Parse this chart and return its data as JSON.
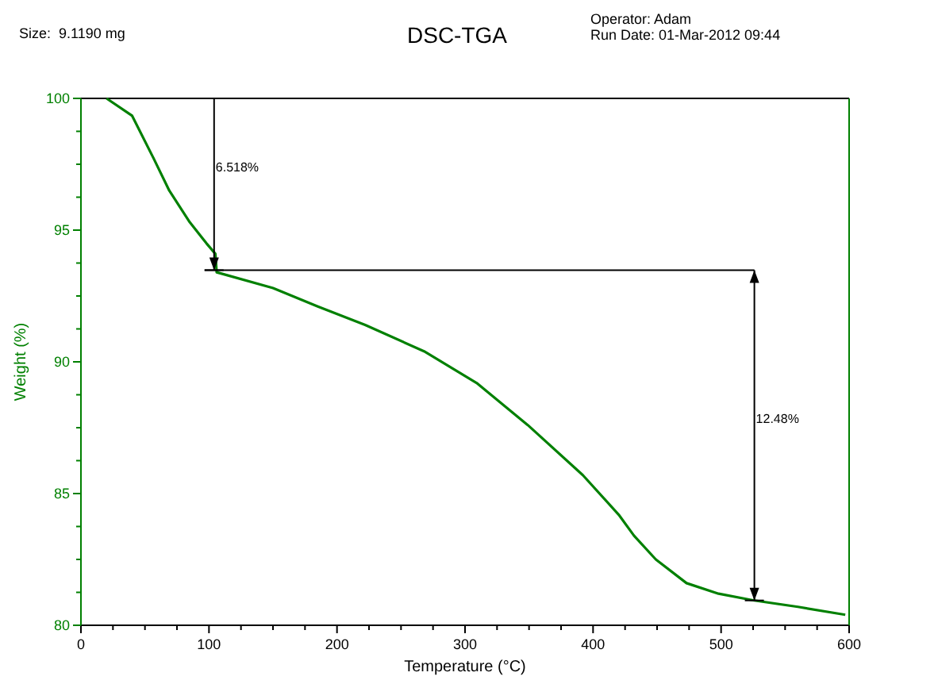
{
  "chart_data": {
    "type": "line",
    "title": "DSC-TGA",
    "xlabel": "Temperature (°C)",
    "ylabel": "Weight (%)",
    "x": [
      20,
      40,
      57,
      69,
      85,
      98,
      105,
      106,
      150,
      185,
      222,
      268,
      309,
      349,
      392,
      420,
      432,
      449,
      473,
      498,
      525,
      560,
      597
    ],
    "series": [
      {
        "color": "#008000",
        "values": [
          100,
          99.34,
          97.7,
          96.5,
          95.3,
          94.5,
          94.1,
          93.4,
          92.8,
          92.1,
          91.4,
          90.4,
          89.2,
          87.6,
          85.7,
          84.2,
          83.4,
          82.5,
          81.6,
          81.2,
          80.95,
          80.7,
          80.4
        ]
      }
    ],
    "xlim": [
      0,
      600
    ],
    "ylim": [
      80,
      100
    ],
    "xticks": [
      0,
      {
        "value": 25,
        "label": null
      },
      {
        "value": 50,
        "label": null
      },
      {
        "value": 75,
        "label": null
      },
      100,
      {
        "value": 125,
        "label": null
      },
      {
        "value": 150,
        "label": null
      },
      {
        "value": 175,
        "label": null
      },
      200,
      {
        "value": 225,
        "label": null
      },
      {
        "value": 250,
        "label": null
      },
      {
        "value": 275,
        "label": null
      },
      300,
      {
        "value": 325,
        "label": null
      },
      {
        "value": 350,
        "label": null
      },
      {
        "value": 375,
        "label": null
      },
      400,
      {
        "value": 425,
        "label": null
      },
      {
        "value": 450,
        "label": null
      },
      {
        "value": 475,
        "label": null
      },
      500,
      {
        "value": 525,
        "label": null
      },
      {
        "value": 550,
        "label": null
      },
      {
        "value": 575,
        "label": null
      },
      600
    ],
    "yticks": [
      80,
      {
        "value": 81.25,
        "label": null
      },
      {
        "value": 82.5,
        "label": null
      },
      {
        "value": 83.75,
        "label": null
      },
      85,
      {
        "value": 86.25,
        "label": null
      },
      {
        "value": 87.5,
        "label": null
      },
      {
        "value": 88.75,
        "label": null
      },
      90,
      {
        "value": 91.25,
        "label": null
      },
      {
        "value": 92.5,
        "label": null
      },
      {
        "value": 93.75,
        "label": null
      },
      95,
      {
        "value": 96.25,
        "label": null
      },
      {
        "value": 97.5,
        "label": null
      },
      {
        "value": 98.75,
        "label": null
      },
      100
    ],
    "grid": false,
    "legend": false,
    "marker": "none",
    "line_style": "solid",
    "ref_lines": [
      {
        "axis": "x",
        "value": 104
      },
      {
        "axis": "y",
        "value": 93.48
      },
      {
        "axis": "x",
        "value": 526
      }
    ],
    "annotations": [
      "Size:  9.1190 mg",
      "Operator: Adam",
      "Run Date: 01-Mar-2012 09:44",
      "6.518%",
      "12.48%"
    ]
  }
}
